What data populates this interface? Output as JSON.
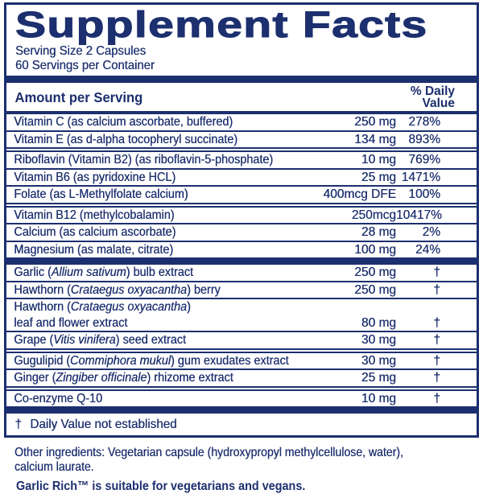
{
  "colors": {
    "navy": "#1c2f6e",
    "background": "#ffffff"
  },
  "panel": {
    "title": "Supplement Facts",
    "serving_size": "Serving Size 2 Capsules",
    "servings_per_container": "60 Servings per Container",
    "column_headers": {
      "amount": "Amount per Serving",
      "daily_value_line1": "% Daily",
      "daily_value_line2": "Value"
    },
    "rows": [
      {
        "parts": [
          {
            "t": "Vitamin C (as calcium ascorbate, buffered)"
          }
        ],
        "amount": "250 mg",
        "dv": "278%",
        "sep": "single"
      },
      {
        "parts": [
          {
            "t": "Vitamin E (as d-alpha tocopheryl succinate)"
          }
        ],
        "amount": "134 mg",
        "dv": "893%",
        "sep": "double"
      },
      {
        "parts": [
          {
            "t": "Riboflavin (Vitamin B2) (as riboflavin-5-phosphate)"
          }
        ],
        "amount": "10 mg",
        "dv": "769%",
        "sep": "single"
      },
      {
        "parts": [
          {
            "t": "Vitamin B6 (as pyridoxine HCL)"
          }
        ],
        "amount": "25 mg",
        "dv": "1471%",
        "sep": "single"
      },
      {
        "parts": [
          {
            "t": "Folate (as L-Methylfolate calcium)"
          }
        ],
        "amount": "400mcg DFE",
        "dv": "100%",
        "sep": "double"
      },
      {
        "parts": [
          {
            "t": "Vitamin B12 (methylcobalamin)"
          }
        ],
        "amount": "250mcg",
        "dv": "10417%",
        "sep": "single"
      },
      {
        "parts": [
          {
            "t": "Calcium (as calcium ascorbate)"
          }
        ],
        "amount": "28 mg",
        "dv": "2%",
        "sep": "single"
      },
      {
        "parts": [
          {
            "t": "Magnesium (as malate, citrate)"
          }
        ],
        "amount": "100 mg",
        "dv": "24%",
        "sep": "bar"
      },
      {
        "parts": [
          {
            "t": "Garlic ("
          },
          {
            "t": "Allium sativum",
            "i": true
          },
          {
            "t": ") bulb extract"
          }
        ],
        "amount": "250 mg",
        "dv": "†",
        "sep": "single"
      },
      {
        "parts": [
          {
            "t": "Hawthorn ("
          },
          {
            "t": "Crataegus oxyacantha",
            "i": true
          },
          {
            "t": ") berry"
          }
        ],
        "amount": "250 mg",
        "dv": "†",
        "sep": "single"
      },
      {
        "parts": [
          {
            "t": "Hawthorn ("
          },
          {
            "t": "Crataegus oxyacantha",
            "i": true
          },
          {
            "t": ")"
          }
        ],
        "amount": "",
        "dv": "",
        "sep": "none"
      },
      {
        "parts": [
          {
            "t": "leaf and flower extract"
          }
        ],
        "amount": "80 mg",
        "dv": "†",
        "sep": "single"
      },
      {
        "parts": [
          {
            "t": "Grape ("
          },
          {
            "t": "Vitis vinifera",
            "i": true
          },
          {
            "t": ") seed extract"
          }
        ],
        "amount": "30 mg",
        "dv": "†",
        "sep": "double"
      },
      {
        "parts": [
          {
            "t": "Gugulipid ("
          },
          {
            "t": "Commiphora mukul",
            "i": true
          },
          {
            "t": ") gum exudates extract"
          }
        ],
        "amount": "30 mg",
        "dv": "†",
        "sep": "single"
      },
      {
        "parts": [
          {
            "t": "Ginger ("
          },
          {
            "t": "Zingiber officinale",
            "i": true
          },
          {
            "t": ") rhizome extract"
          }
        ],
        "amount": "25 mg",
        "dv": "†",
        "sep": "double"
      },
      {
        "parts": [
          {
            "t": "Co-enzyme Q-10"
          }
        ],
        "amount": "10 mg",
        "dv": "†",
        "sep": "bar"
      }
    ],
    "footnote_symbol": "†",
    "footnote_text": "Daily Value not established"
  },
  "other_ingredients_lines": [
    "Other ingredients: Vegetarian capsule (hydroxypropyl methylcellulose, water),",
    "calcium laurate."
  ],
  "clipped_bottom_line_partial": "Garlic Rich™ is suitable for vegetarians and vegans."
}
